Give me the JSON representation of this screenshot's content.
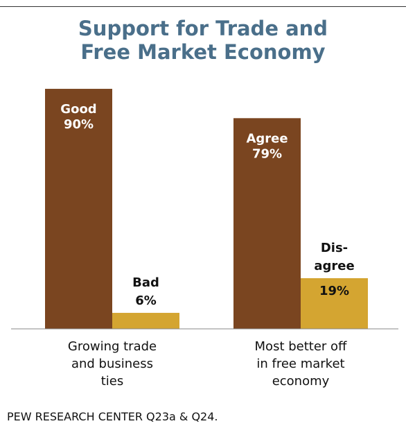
{
  "title_lines": [
    "Support for Trade and",
    "Free Market Economy"
  ],
  "source": "PEW RESEARCH CENTER Q23a & Q24.",
  "colors": {
    "positive": "#7a4520",
    "negative": "#d4a531",
    "title": "#4a6f8a"
  },
  "chart_data": {
    "type": "bar",
    "title": "Support for Trade and Free Market Economy",
    "ylim": [
      0,
      100
    ],
    "grid": false,
    "groups": [
      {
        "category_lines": [
          "Growing trade",
          "and business",
          "ties"
        ],
        "bars": [
          {
            "label_lines": [
              "Good",
              "90%"
            ],
            "value": 90,
            "color": "#7a4520",
            "label_inside": true
          },
          {
            "label_lines": [
              "Bad",
              "6%"
            ],
            "value": 6,
            "color": "#d4a531",
            "label_inside": false
          }
        ]
      },
      {
        "category_lines": [
          "Most better off",
          "in free market",
          "economy"
        ],
        "bars": [
          {
            "label_lines": [
              "Agree",
              "79%"
            ],
            "value": 79,
            "color": "#7a4520",
            "label_inside": true
          },
          {
            "label_lines": [
              "Dis-",
              "agree"
            ],
            "value": 19,
            "color": "#d4a531",
            "label_inside": false,
            "value_label": "19%"
          }
        ]
      }
    ]
  }
}
